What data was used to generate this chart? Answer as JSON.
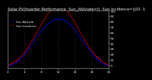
{
  "title": "Solar PV/Inverter Performance  Sun_AltAngle=||  Sun Incidence=||02..1",
  "legend_blue": "Sun Altitude",
  "legend_red": "Sun Incidence",
  "line1_color": "#0000ff",
  "line2_color": "#ff0000",
  "background_color": "#000000",
  "plot_bg_color": "#000000",
  "grid_color": "#404040",
  "ylim": [
    -5,
    100
  ],
  "xlim": [
    0,
    24
  ],
  "yticks_right": [
    0,
    10,
    20,
    30,
    40,
    50,
    60,
    70,
    80,
    90,
    100
  ],
  "xticks": [
    0,
    4,
    8,
    12,
    16,
    20,
    24
  ],
  "title_fontsize": 4.0,
  "tick_fontsize": 3.0,
  "linewidth": 1.2
}
